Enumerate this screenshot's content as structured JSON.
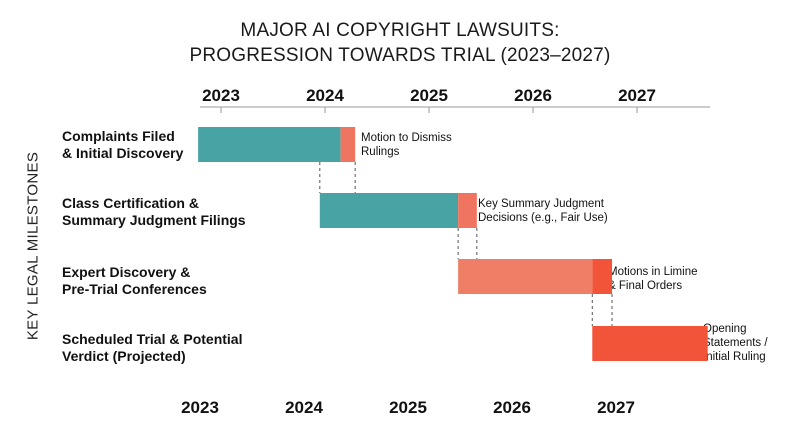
{
  "chart_data": {
    "type": "gantt",
    "title_lines": [
      "MAJOR AI COPYRIGHT LAWSUITS:",
      "PROGRESSION TOWARDS TRIAL (2023–2027)"
    ],
    "ylabel": "KEY LEGAL MILESTONES",
    "axis": {
      "ticks": [
        "2023",
        "2024",
        "2025",
        "2026",
        "2027"
      ],
      "range": [
        2022.8,
        2027.85
      ]
    },
    "colors": {
      "teal": "#48A3A5",
      "light_coral": "#EE7F66",
      "coral": "#F07560",
      "red_orange": "#F2543A",
      "tick_text": "#111111"
    },
    "rows": [
      {
        "label": [
          "Complaints Filed",
          "& Initial Discovery"
        ],
        "segments": [
          {
            "start": 2022.78,
            "end": 2024.15,
            "color": "teal"
          },
          {
            "start": 2024.15,
            "end": 2024.29,
            "color": "coral"
          }
        ],
        "annotation": [
          "Motion to Dismiss",
          "Rulings"
        ]
      },
      {
        "label": [
          "Class Certification &",
          "Summary Judgment Filings"
        ],
        "segments": [
          {
            "start": 2023.95,
            "end": 2025.28,
            "color": "teal"
          },
          {
            "start": 2025.28,
            "end": 2025.46,
            "color": "coral"
          }
        ],
        "annotation": [
          "Key Summary Judgment",
          "Decisions (e.g., Fair Use)"
        ]
      },
      {
        "label": [
          "Expert Discovery &",
          "Pre-Trial Conferences"
        ],
        "segments": [
          {
            "start": 2025.28,
            "end": 2026.57,
            "color": "light_coral"
          },
          {
            "start": 2026.57,
            "end": 2026.76,
            "color": "red_orange"
          }
        ],
        "annotation": [
          "Motions in Limine",
          "& Final Orders"
        ]
      },
      {
        "label": [
          "Scheduled Trial & Potential",
          "Verdict (Projected)"
        ],
        "segments": [
          {
            "start": 2026.57,
            "end": 2027.68,
            "color": "red_orange"
          }
        ],
        "annotation": [
          "Opening",
          "Statements /",
          "Initial Ruling"
        ]
      }
    ]
  }
}
